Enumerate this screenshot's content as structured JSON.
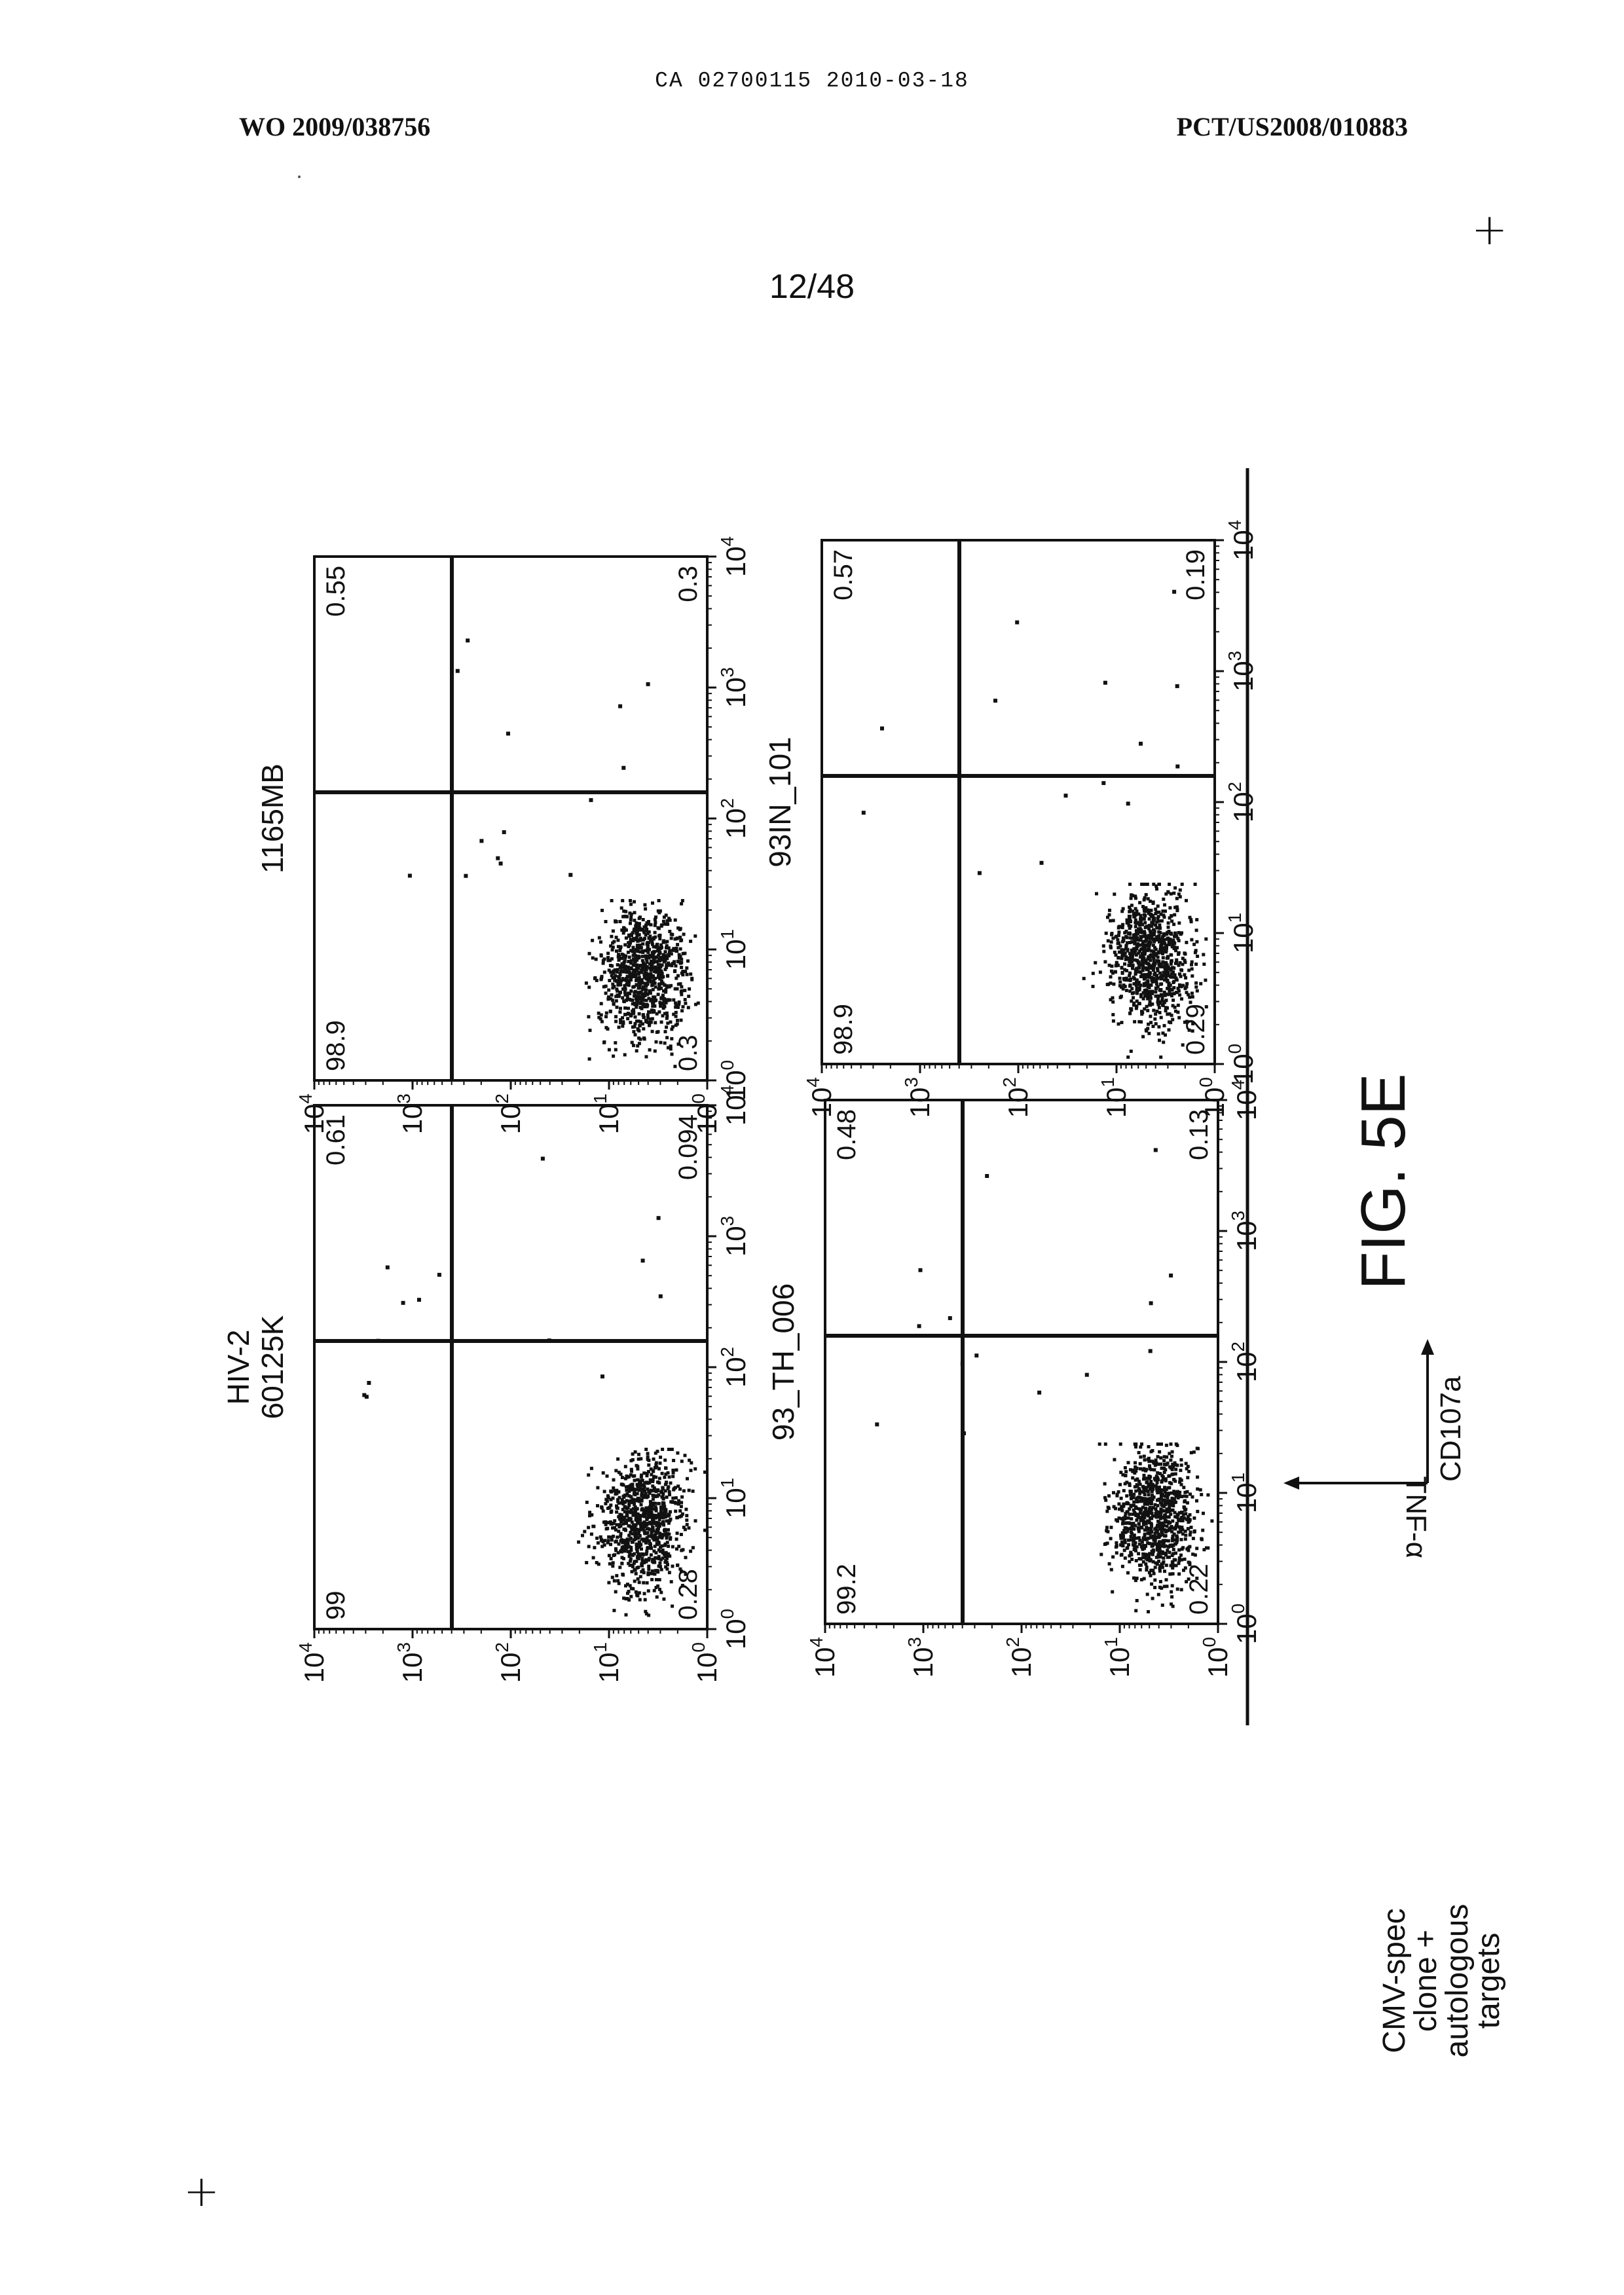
{
  "header": {
    "left": "WO 2009/038756",
    "center": "CA 02700115 2010-03-18",
    "right": "PCT/US2008/010883"
  },
  "page_number": "12/48",
  "figure": {
    "caption": "FIG. 5E",
    "row_label_lines": [
      "CMV-spec",
      "clone +",
      "autologous",
      "targets"
    ],
    "axes_key": {
      "x_label": "CD107a",
      "y_label": "TNF-α"
    },
    "axis_ticks": [
      {
        "base": "10",
        "exp": "0"
      },
      {
        "base": "10",
        "exp": "1"
      },
      {
        "base": "10",
        "exp": "2"
      },
      {
        "base": "10",
        "exp": "3"
      },
      {
        "base": "10",
        "exp": "4"
      }
    ],
    "panels": [
      {
        "title_lines": [
          "HIV-2",
          "60125K"
        ],
        "quadrants": {
          "upper_left": "0.28",
          "upper_right": "0.094",
          "lower_left": "99",
          "lower_right": "0.61"
        },
        "gate_x": 0.55,
        "gate_y": 0.35
      },
      {
        "title_lines": [
          "1165MB"
        ],
        "quadrants": {
          "upper_left": "0.3",
          "upper_right": "0.3",
          "lower_left": "98.9",
          "lower_right": "0.55"
        },
        "gate_x": 0.55,
        "gate_y": 0.35
      },
      {
        "title_lines": [
          "93_TH_006"
        ],
        "quadrants": {
          "upper_left": "0.22",
          "upper_right": "0.13",
          "lower_left": "99.2",
          "lower_right": "0.48"
        },
        "gate_x": 0.55,
        "gate_y": 0.35
      },
      {
        "title_lines": [
          "93IN_101"
        ],
        "quadrants": {
          "upper_left": "0.29",
          "upper_right": "0.19",
          "lower_left": "98.9",
          "lower_right": "0.57"
        },
        "gate_x": 0.55,
        "gate_y": 0.35
      }
    ]
  },
  "colors": {
    "ink": "#111111",
    "paper": "#ffffff"
  }
}
